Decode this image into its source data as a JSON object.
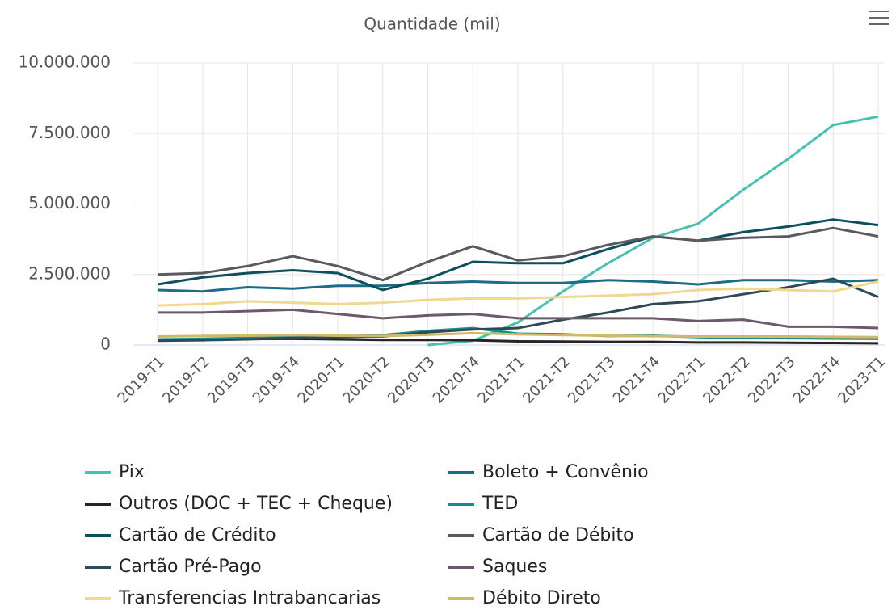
{
  "chart_data": {
    "type": "line",
    "title": "Quantidade (mil)",
    "categories": [
      "2019-T1",
      "2019-T2",
      "2019-T3",
      "2019-T4",
      "2020-T1",
      "2020-T2",
      "2020-T3",
      "2020-T4",
      "2021-T1",
      "2021-T2",
      "2021-T3",
      "2021-T4",
      "2022-T1",
      "2022-T2",
      "2022-T3",
      "2022-T4",
      "2023-T1"
    ],
    "ylim": [
      0,
      10000000
    ],
    "yticks": [
      0,
      {
        "value": 2500000,
        "label": "2.500.000"
      },
      {
        "value": 5000000,
        "label": "5.000.000"
      },
      {
        "value": 7500000,
        "label": "7.500.000"
      },
      {
        "value": 10000000,
        "label": "10.000.000"
      }
    ],
    "grid": true,
    "series": [
      {
        "name": "Pix",
        "color": "#4dbfb2",
        "values": [
          null,
          null,
          null,
          null,
          null,
          null,
          0,
          150000,
          800000,
          1900000,
          2900000,
          3800000,
          4300000,
          5500000,
          6600000,
          7800000,
          8100000
        ]
      },
      {
        "name": "Boleto + Convênio",
        "color": "#1c6b87",
        "values": [
          1950000,
          1900000,
          2050000,
          2000000,
          2100000,
          2100000,
          2200000,
          2250000,
          2200000,
          2200000,
          2300000,
          2250000,
          2150000,
          2300000,
          2300000,
          2250000,
          2300000
        ]
      },
      {
        "name": "Outros (DOC + TEC + Cheque)",
        "color": "#2b2222",
        "values": [
          200000,
          200000,
          210000,
          220000,
          200000,
          180000,
          180000,
          170000,
          130000,
          120000,
          110000,
          110000,
          90000,
          90000,
          80000,
          70000,
          60000
        ]
      },
      {
        "name": "TED",
        "color": "#178c8c",
        "values": [
          200000,
          220000,
          250000,
          300000,
          300000,
          350000,
          500000,
          600000,
          400000,
          380000,
          320000,
          330000,
          280000,
          250000,
          240000,
          230000,
          220000
        ]
      },
      {
        "name": "Cartão de Crédito",
        "color": "#0d4f5c",
        "values": [
          2150000,
          2400000,
          2550000,
          2650000,
          2550000,
          1950000,
          2350000,
          2950000,
          2900000,
          2900000,
          3400000,
          3850000,
          3700000,
          4000000,
          4200000,
          4450000,
          4250000
        ]
      },
      {
        "name": "Cartão de Débito",
        "color": "#5a5a5e",
        "values": [
          2500000,
          2550000,
          2800000,
          3150000,
          2800000,
          2300000,
          2950000,
          3500000,
          3000000,
          3150000,
          3550000,
          3850000,
          3700000,
          3800000,
          3850000,
          4150000,
          3850000
        ]
      },
      {
        "name": "Cartão Pré-Pago",
        "color": "#2f4a55",
        "values": [
          150000,
          170000,
          200000,
          250000,
          280000,
          300000,
          450000,
          550000,
          600000,
          900000,
          1150000,
          1450000,
          1550000,
          1800000,
          2050000,
          2350000,
          1700000
        ]
      },
      {
        "name": "Saques",
        "color": "#6b5a6b",
        "values": [
          1150000,
          1150000,
          1200000,
          1250000,
          1100000,
          950000,
          1050000,
          1100000,
          950000,
          950000,
          950000,
          950000,
          850000,
          900000,
          650000,
          650000,
          600000
        ]
      },
      {
        "name": "Transferencias Intrabancarias",
        "color": "#f0d890",
        "values": [
          1400000,
          1450000,
          1550000,
          1500000,
          1450000,
          1500000,
          1600000,
          1650000,
          1650000,
          1700000,
          1750000,
          1800000,
          1950000,
          2000000,
          1950000,
          1900000,
          2250000
        ]
      },
      {
        "name": "Débito Direto",
        "color": "#d4b86a",
        "values": [
          300000,
          320000,
          330000,
          350000,
          330000,
          320000,
          360000,
          420000,
          380000,
          350000,
          330000,
          310000,
          300000,
          300000,
          300000,
          290000,
          280000
        ]
      }
    ]
  }
}
